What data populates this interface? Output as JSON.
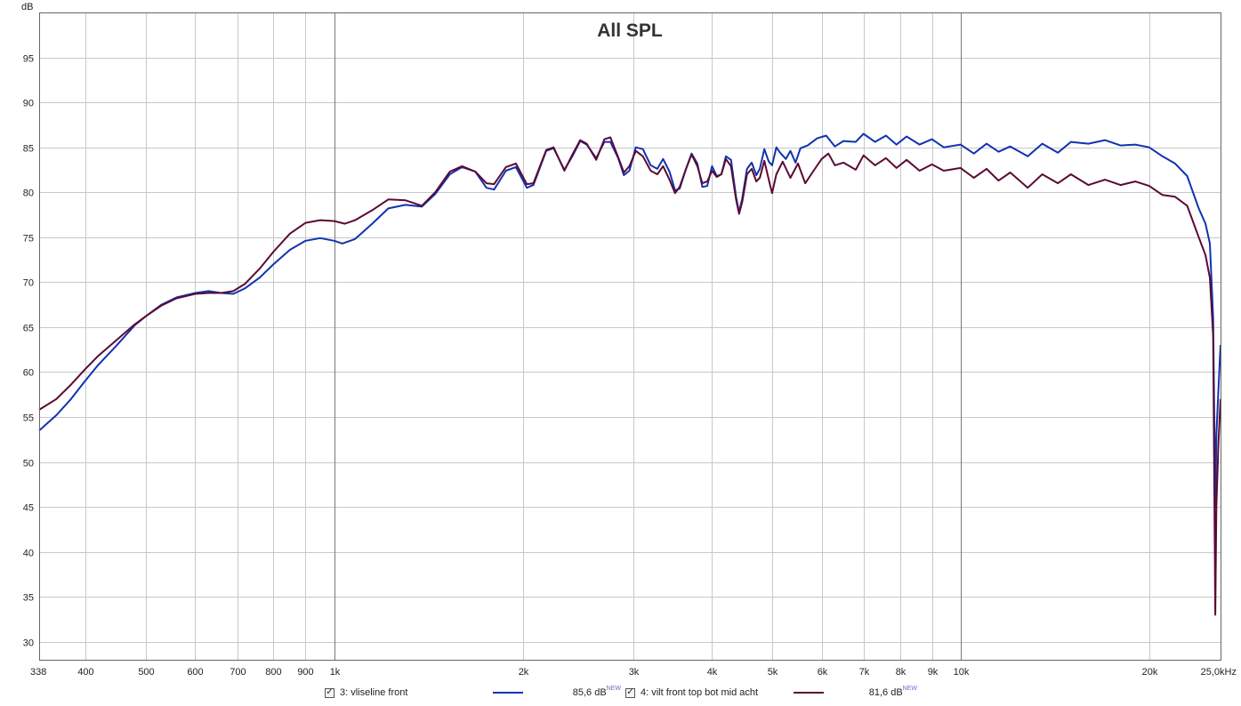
{
  "chart_data": {
    "type": "line",
    "title": "All SPL",
    "ylabel": "dB",
    "xscale": "log",
    "xlim": [
      338,
      26000
    ],
    "ylim": [
      28,
      100
    ],
    "yticks": [
      30,
      35,
      40,
      45,
      50,
      55,
      60,
      65,
      70,
      75,
      80,
      85,
      90,
      95
    ],
    "xticks": [
      {
        "v": 338,
        "label": "338"
      },
      {
        "v": 400,
        "label": "400"
      },
      {
        "v": 500,
        "label": "500"
      },
      {
        "v": 600,
        "label": "600"
      },
      {
        "v": 700,
        "label": "700"
      },
      {
        "v": 800,
        "label": "800"
      },
      {
        "v": 900,
        "label": "900"
      },
      {
        "v": 1000,
        "label": "1k"
      },
      {
        "v": 2000,
        "label": "2k"
      },
      {
        "v": 3000,
        "label": "3k"
      },
      {
        "v": 4000,
        "label": "4k"
      },
      {
        "v": 5000,
        "label": "5k"
      },
      {
        "v": 6000,
        "label": "6k"
      },
      {
        "v": 7000,
        "label": "7k"
      },
      {
        "v": 8000,
        "label": "8k"
      },
      {
        "v": 9000,
        "label": "9k"
      },
      {
        "v": 10000,
        "label": "10k"
      },
      {
        "v": 20000,
        "label": "20k"
      },
      {
        "v": 26000,
        "label": "25,0kHz"
      }
    ],
    "grid": true,
    "legend_position": "bottom",
    "series": [
      {
        "name": "3: vliseline front",
        "color": "#1033b0",
        "level": "85,6 dB",
        "points": [
          [
            338,
            53.5
          ],
          [
            360,
            55.2
          ],
          [
            380,
            57
          ],
          [
            400,
            59
          ],
          [
            420,
            60.8
          ],
          [
            450,
            63
          ],
          [
            480,
            65.2
          ],
          [
            500,
            66.2
          ],
          [
            530,
            67.5
          ],
          [
            560,
            68.3
          ],
          [
            600,
            68.8
          ],
          [
            630,
            69
          ],
          [
            660,
            68.8
          ],
          [
            690,
            68.7
          ],
          [
            720,
            69.3
          ],
          [
            760,
            70.5
          ],
          [
            800,
            72
          ],
          [
            850,
            73.6
          ],
          [
            900,
            74.6
          ],
          [
            950,
            74.9
          ],
          [
            1000,
            74.6
          ],
          [
            1030,
            74.3
          ],
          [
            1080,
            74.8
          ],
          [
            1150,
            76.5
          ],
          [
            1220,
            78.2
          ],
          [
            1300,
            78.6
          ],
          [
            1380,
            78.4
          ],
          [
            1450,
            79.8
          ],
          [
            1530,
            82
          ],
          [
            1600,
            82.8
          ],
          [
            1680,
            82.3
          ],
          [
            1750,
            80.5
          ],
          [
            1800,
            80.3
          ],
          [
            1880,
            82.4
          ],
          [
            1950,
            82.8
          ],
          [
            2030,
            80.5
          ],
          [
            2080,
            80.8
          ],
          [
            2180,
            84.6
          ],
          [
            2240,
            84.9
          ],
          [
            2330,
            82.5
          ],
          [
            2400,
            84
          ],
          [
            2470,
            85.7
          ],
          [
            2530,
            85.3
          ],
          [
            2620,
            83.8
          ],
          [
            2700,
            85.6
          ],
          [
            2760,
            85.6
          ],
          [
            2840,
            83.8
          ],
          [
            2900,
            81.9
          ],
          [
            2960,
            82.4
          ],
          [
            3030,
            85
          ],
          [
            3110,
            84.8
          ],
          [
            3200,
            83
          ],
          [
            3280,
            82.6
          ],
          [
            3350,
            83.7
          ],
          [
            3430,
            82.3
          ],
          [
            3500,
            80.2
          ],
          [
            3560,
            80.4
          ],
          [
            3640,
            82.5
          ],
          [
            3720,
            84.3
          ],
          [
            3800,
            83.2
          ],
          [
            3870,
            80.6
          ],
          [
            3940,
            80.7
          ],
          [
            4010,
            82.9
          ],
          [
            4080,
            81.8
          ],
          [
            4150,
            82
          ],
          [
            4220,
            84
          ],
          [
            4300,
            83.6
          ],
          [
            4380,
            79.5
          ],
          [
            4430,
            77.8
          ],
          [
            4480,
            79.3
          ],
          [
            4560,
            82.6
          ],
          [
            4640,
            83.3
          ],
          [
            4720,
            81.9
          ],
          [
            4780,
            82.6
          ],
          [
            4860,
            84.8
          ],
          [
            4940,
            83.4
          ],
          [
            5000,
            83
          ],
          [
            5080,
            85
          ],
          [
            5150,
            84.4
          ],
          [
            5260,
            83.7
          ],
          [
            5350,
            84.6
          ],
          [
            5450,
            83.3
          ],
          [
            5550,
            84.9
          ],
          [
            5700,
            85.2
          ],
          [
            5900,
            86
          ],
          [
            6100,
            86.3
          ],
          [
            6300,
            85.1
          ],
          [
            6500,
            85.7
          ],
          [
            6800,
            85.6
          ],
          [
            7000,
            86.5
          ],
          [
            7300,
            85.6
          ],
          [
            7600,
            86.3
          ],
          [
            7900,
            85.3
          ],
          [
            8200,
            86.2
          ],
          [
            8600,
            85.3
          ],
          [
            9000,
            85.9
          ],
          [
            9400,
            85
          ],
          [
            10000,
            85.3
          ],
          [
            10500,
            84.3
          ],
          [
            11000,
            85.4
          ],
          [
            11500,
            84.5
          ],
          [
            12000,
            85.1
          ],
          [
            12800,
            84
          ],
          [
            13500,
            85.4
          ],
          [
            14300,
            84.4
          ],
          [
            15000,
            85.6
          ],
          [
            16000,
            85.4
          ],
          [
            17000,
            85.8
          ],
          [
            18000,
            85.2
          ],
          [
            19000,
            85.3
          ],
          [
            20000,
            85
          ],
          [
            21000,
            84
          ],
          [
            22000,
            83.2
          ],
          [
            23000,
            81.8
          ],
          [
            24000,
            78.2
          ],
          [
            24600,
            76.5
          ],
          [
            25000,
            74.3
          ],
          [
            25300,
            66
          ],
          [
            25500,
            45
          ],
          [
            25600,
            53
          ],
          [
            25800,
            58
          ],
          [
            26000,
            63
          ]
        ]
      },
      {
        "name": "4: vilt front top bot mid acht",
        "color": "#5c0a33",
        "level": "81,6 dB",
        "points": [
          [
            338,
            55.8
          ],
          [
            360,
            57
          ],
          [
            380,
            58.6
          ],
          [
            400,
            60.3
          ],
          [
            420,
            61.8
          ],
          [
            450,
            63.6
          ],
          [
            480,
            65.3
          ],
          [
            500,
            66.2
          ],
          [
            530,
            67.4
          ],
          [
            560,
            68.2
          ],
          [
            600,
            68.7
          ],
          [
            630,
            68.8
          ],
          [
            660,
            68.8
          ],
          [
            690,
            69
          ],
          [
            720,
            69.8
          ],
          [
            760,
            71.5
          ],
          [
            800,
            73.4
          ],
          [
            850,
            75.4
          ],
          [
            900,
            76.6
          ],
          [
            950,
            76.9
          ],
          [
            1000,
            76.8
          ],
          [
            1040,
            76.5
          ],
          [
            1080,
            76.9
          ],
          [
            1150,
            78
          ],
          [
            1220,
            79.2
          ],
          [
            1300,
            79.1
          ],
          [
            1380,
            78.5
          ],
          [
            1450,
            80
          ],
          [
            1530,
            82.3
          ],
          [
            1600,
            82.9
          ],
          [
            1680,
            82.3
          ],
          [
            1750,
            81
          ],
          [
            1800,
            80.9
          ],
          [
            1880,
            82.8
          ],
          [
            1950,
            83.2
          ],
          [
            2030,
            80.9
          ],
          [
            2080,
            81
          ],
          [
            2180,
            84.7
          ],
          [
            2240,
            85
          ],
          [
            2330,
            82.4
          ],
          [
            2400,
            84.2
          ],
          [
            2470,
            85.8
          ],
          [
            2530,
            85.4
          ],
          [
            2620,
            83.6
          ],
          [
            2700,
            85.9
          ],
          [
            2760,
            86.1
          ],
          [
            2840,
            83.9
          ],
          [
            2900,
            82.2
          ],
          [
            2960,
            82.9
          ],
          [
            3030,
            84.6
          ],
          [
            3110,
            84
          ],
          [
            3200,
            82.4
          ],
          [
            3280,
            82
          ],
          [
            3350,
            82.9
          ],
          [
            3430,
            81.4
          ],
          [
            3500,
            79.9
          ],
          [
            3560,
            80.6
          ],
          [
            3640,
            82.5
          ],
          [
            3720,
            84.2
          ],
          [
            3800,
            82.9
          ],
          [
            3870,
            81
          ],
          [
            3940,
            81.2
          ],
          [
            4010,
            82.4
          ],
          [
            4080,
            81.7
          ],
          [
            4150,
            82
          ],
          [
            4220,
            83.7
          ],
          [
            4300,
            82.9
          ],
          [
            4380,
            79.2
          ],
          [
            4430,
            77.6
          ],
          [
            4480,
            78.9
          ],
          [
            4560,
            82
          ],
          [
            4640,
            82.6
          ],
          [
            4720,
            81.2
          ],
          [
            4780,
            81.6
          ],
          [
            4860,
            83.5
          ],
          [
            4940,
            81.4
          ],
          [
            5000,
            79.9
          ],
          [
            5080,
            82
          ],
          [
            5200,
            83.4
          ],
          [
            5350,
            81.6
          ],
          [
            5500,
            83.2
          ],
          [
            5650,
            81
          ],
          [
            5800,
            82.2
          ],
          [
            6000,
            83.7
          ],
          [
            6150,
            84.3
          ],
          [
            6300,
            83
          ],
          [
            6500,
            83.3
          ],
          [
            6800,
            82.5
          ],
          [
            7000,
            84.1
          ],
          [
            7300,
            83
          ],
          [
            7600,
            83.8
          ],
          [
            7900,
            82.7
          ],
          [
            8200,
            83.6
          ],
          [
            8600,
            82.4
          ],
          [
            9000,
            83.1
          ],
          [
            9400,
            82.4
          ],
          [
            10000,
            82.7
          ],
          [
            10500,
            81.6
          ],
          [
            11000,
            82.6
          ],
          [
            11500,
            81.3
          ],
          [
            12000,
            82.2
          ],
          [
            12800,
            80.5
          ],
          [
            13500,
            82
          ],
          [
            14300,
            81
          ],
          [
            15000,
            82
          ],
          [
            16000,
            80.8
          ],
          [
            17000,
            81.4
          ],
          [
            18000,
            80.8
          ],
          [
            19000,
            81.2
          ],
          [
            20000,
            80.7
          ],
          [
            21000,
            79.7
          ],
          [
            22000,
            79.5
          ],
          [
            23000,
            78.5
          ],
          [
            24000,
            75
          ],
          [
            24600,
            73
          ],
          [
            25000,
            70.5
          ],
          [
            25300,
            64
          ],
          [
            25500,
            33
          ],
          [
            25600,
            45
          ],
          [
            25800,
            52
          ],
          [
            26000,
            57
          ]
        ]
      }
    ]
  },
  "legend": [
    {
      "checked": true,
      "label": "3: vliseline front",
      "color": "#1033b0",
      "value": "85,6 dB",
      "badge": "NEW"
    },
    {
      "checked": true,
      "label": "4: vilt front top bot mid acht",
      "color": "#5c0a33",
      "value": "81,6 dB",
      "badge": "NEW"
    }
  ]
}
